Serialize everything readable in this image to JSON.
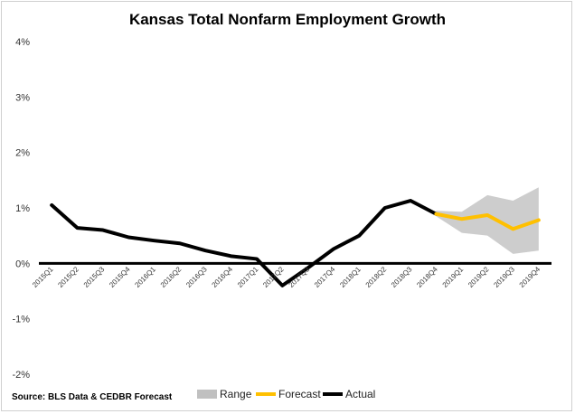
{
  "chart_data": {
    "type": "line",
    "title": "Kansas Total Nonfarm Employment Growth",
    "source": "Source: BLS Data & CEDBR Forecast",
    "xlabel": "",
    "ylabel": "",
    "ylim": [
      -2,
      4
    ],
    "yticks": [
      4,
      3,
      2,
      1,
      0,
      -1,
      -2
    ],
    "ytick_labels": [
      "4%",
      "3%",
      "2%",
      "1%",
      "0%",
      "-1%",
      "-2%"
    ],
    "grid": false,
    "legend_position": "bottom",
    "categories": [
      "2015Q1",
      "2015Q2",
      "2015Q3",
      "2015Q4",
      "2016Q1",
      "2016Q2",
      "2016Q3",
      "2016Q4",
      "2017Q1",
      "2017Q2",
      "2017Q3",
      "2017Q4",
      "2018Q1",
      "2018Q2",
      "2018Q3",
      "2018Q4",
      "2019Q1",
      "2019Q2",
      "2019Q3",
      "2019Q4"
    ],
    "series": [
      {
        "name": "Actual",
        "color": "#000000",
        "values": [
          1.05,
          0.64,
          0.6,
          0.47,
          0.41,
          0.36,
          0.23,
          0.13,
          0.08,
          -0.4,
          -0.08,
          0.26,
          0.5,
          1.0,
          1.13,
          0.89,
          null,
          null,
          null,
          null
        ]
      },
      {
        "name": "Forecast",
        "color": "#FFC000",
        "values": [
          null,
          null,
          null,
          null,
          null,
          null,
          null,
          null,
          null,
          null,
          null,
          null,
          null,
          null,
          null,
          0.89,
          0.8,
          0.87,
          0.62,
          0.78
        ]
      }
    ],
    "range": {
      "name": "Range",
      "color": "#C0C0C0",
      "upper": [
        null,
        null,
        null,
        null,
        null,
        null,
        null,
        null,
        null,
        null,
        null,
        null,
        null,
        null,
        null,
        0.95,
        0.93,
        1.23,
        1.13,
        1.37
      ],
      "lower": [
        null,
        null,
        null,
        null,
        null,
        null,
        null,
        null,
        null,
        null,
        null,
        null,
        null,
        null,
        null,
        0.85,
        0.55,
        0.5,
        0.17,
        0.23
      ]
    }
  }
}
